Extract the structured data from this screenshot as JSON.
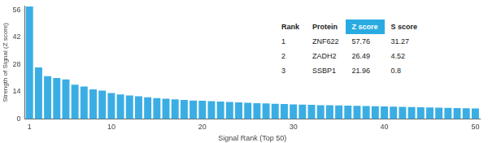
{
  "chart_data": {
    "type": "bar",
    "xlabel": "Signal Rank (Top 50)",
    "ylabel": "Strength of Signal (Z score)",
    "categories": [
      1,
      null,
      null,
      null,
      null,
      null,
      null,
      null,
      null,
      10,
      null,
      null,
      null,
      null,
      null,
      null,
      null,
      null,
      null,
      20,
      null,
      null,
      null,
      null,
      null,
      null,
      null,
      null,
      null,
      30,
      null,
      null,
      null,
      null,
      null,
      null,
      null,
      null,
      null,
      40,
      null,
      null,
      null,
      null,
      null,
      null,
      null,
      null,
      null,
      50
    ],
    "values": [
      57.76,
      26.49,
      21.96,
      21.0,
      20.3,
      17.6,
      16.6,
      15.2,
      14.6,
      13.3,
      12.6,
      12.1,
      11.6,
      11.1,
      10.7,
      10.4,
      10.1,
      9.8,
      9.5,
      9.3,
      9.1,
      8.9,
      8.7,
      8.5,
      8.3,
      8.1,
      8.0,
      7.8,
      7.7,
      7.5,
      7.4,
      7.3,
      7.1,
      7.0,
      6.9,
      6.8,
      6.7,
      6.6,
      6.5,
      6.4,
      6.3,
      6.2,
      6.1,
      6.0,
      5.9,
      5.8,
      5.7,
      5.6,
      5.5,
      5.4
    ],
    "color": "#3aaee4",
    "ylim": [
      0,
      58
    ],
    "yticks": [
      0,
      14,
      28,
      42,
      56
    ],
    "grid": false
  },
  "table": {
    "columns": [
      "Rank",
      "Protein",
      "Z score",
      "S score"
    ],
    "rows": [
      [
        1,
        "ZNF622",
        57.76,
        31.27
      ],
      [
        2,
        "ZADH2",
        26.49,
        4.52
      ],
      [
        3,
        "SSBP1",
        21.96,
        0.8
      ]
    ]
  }
}
